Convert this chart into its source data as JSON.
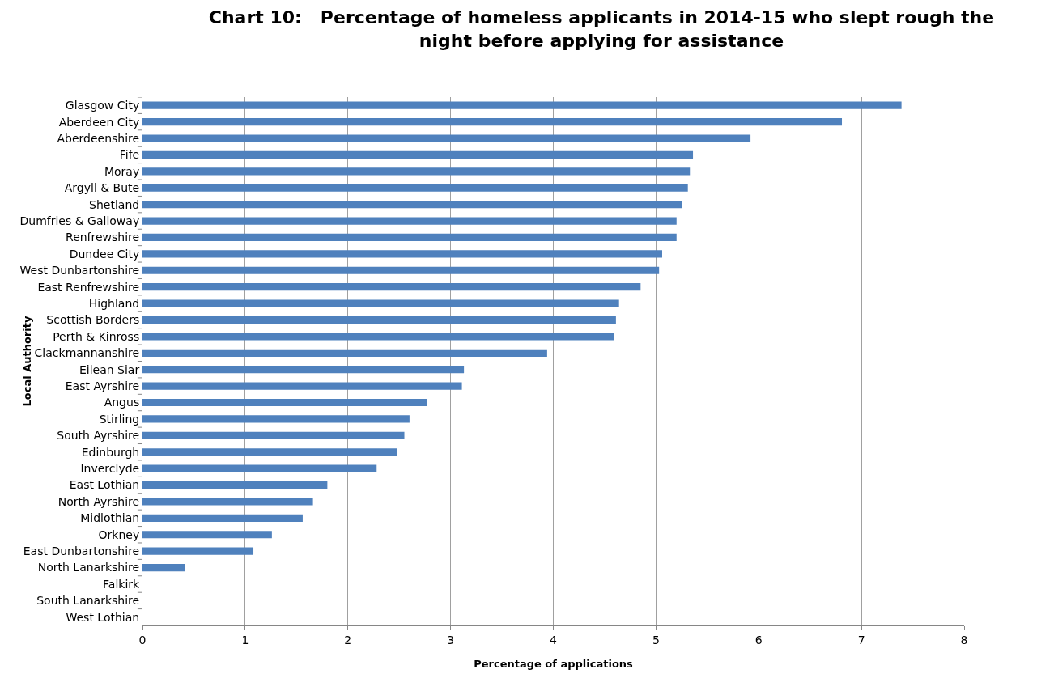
{
  "chart_data": {
    "type": "bar",
    "orientation": "horizontal",
    "title": "Chart 10:   Percentage of homeless applicants in 2014-15 who slept rough the night before applying for assistance",
    "xlabel": "Percentage of applications",
    "ylabel": "Local Authority",
    "categories": [
      "Glasgow City",
      "Aberdeen City",
      "Aberdeenshire",
      "Fife",
      "Moray",
      "Argyll & Bute",
      "Shetland",
      "Dumfries & Galloway",
      "Renfrewshire",
      "Dundee City",
      "West Dunbartonshire",
      "East Renfrewshire",
      "Highland",
      "Scottish Borders",
      "Perth & Kinross",
      "Clackmannanshire",
      "Eilean Siar",
      "East Ayrshire",
      "Angus",
      "Stirling",
      "South Ayrshire",
      "Edinburgh",
      "Inverclyde",
      "East Lothian",
      "North Ayrshire",
      "Midlothian",
      "Orkney",
      "East Dunbartonshire",
      "North Lanarkshire",
      "Falkirk",
      "South Lanarkshire",
      "West Lothian"
    ],
    "values": [
      7.39,
      6.81,
      5.92,
      5.36,
      5.33,
      5.31,
      5.25,
      5.2,
      5.2,
      5.06,
      5.03,
      4.85,
      4.64,
      4.61,
      4.59,
      3.94,
      3.13,
      3.11,
      2.77,
      2.6,
      2.55,
      2.48,
      2.28,
      1.8,
      1.66,
      1.56,
      1.26,
      1.08,
      0.41,
      0,
      0,
      0
    ],
    "color": "#4f81bd",
    "xlim": [
      0,
      8
    ],
    "xticks": [
      0,
      1,
      2,
      3,
      4,
      5,
      6,
      7,
      8
    ],
    "grid": "x",
    "legend": false
  }
}
